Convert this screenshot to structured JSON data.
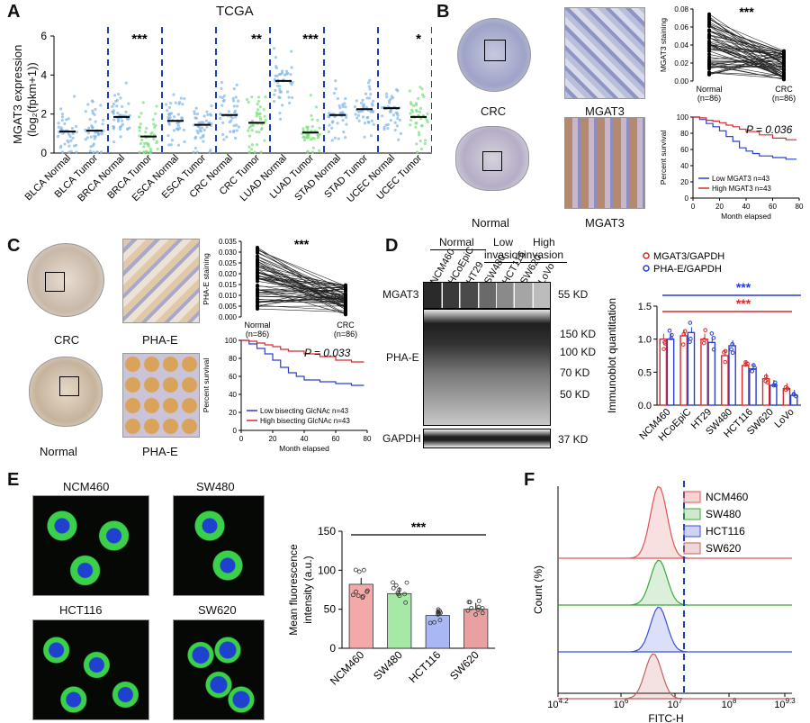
{
  "panels": {
    "A": "A",
    "B": "B",
    "C": "C",
    "D": "D",
    "E": "E",
    "F": "F"
  },
  "panelA": {
    "title": "TCGA",
    "ylabel_line1": "MGAT3 expression",
    "ylabel_line2": "(log₂(fpkm+1))",
    "significance": [
      "***",
      "**",
      "***",
      "*"
    ]
  },
  "chart_data": [
    {
      "type": "scatter",
      "panel": "A",
      "title": "TCGA",
      "ylabel": "MGAT3 expression (log2(fpkm+1))",
      "ylim": [
        0,
        6
      ],
      "yticks": [
        0,
        2,
        4,
        6
      ],
      "categories": [
        "BLCA Normal",
        "BLCA Tumor",
        "BRCA Normal",
        "BRCA Tumor",
        "ESCA Normal",
        "ESCA Tumor",
        "CRC Normal",
        "CRC Tumor",
        "LUAD Normal",
        "LUAD Tumor",
        "STAD Normal",
        "STAD Tumor",
        "UCEC Normal",
        "UCEC Tumor"
      ],
      "means": [
        1.1,
        1.15,
        1.85,
        0.85,
        1.65,
        1.45,
        1.95,
        1.55,
        3.7,
        1.05,
        1.95,
        2.25,
        2.3,
        1.85
      ],
      "colors": [
        "#7fb5e6",
        "#7fb5e6",
        "#7fb5e6",
        "#79e07a",
        "#7fb5e6",
        "#7fb5e6",
        "#7fb5e6",
        "#79e07a",
        "#7fb5e6",
        "#79e07a",
        "#7fb5e6",
        "#7fb5e6",
        "#7fb5e6",
        "#79e07a"
      ]
    },
    {
      "type": "line",
      "panel": "B-staining",
      "ylabel": "MGAT3 staining",
      "ylim": [
        0,
        0.08
      ],
      "yticks": [
        "0.00",
        "0.02",
        "0.04",
        "0.06",
        "0.08"
      ],
      "categories": [
        "Normal (n=86)",
        "CRC (n=86)"
      ],
      "significance": "***"
    },
    {
      "type": "line",
      "panel": "B-survival",
      "ylabel": "Percent survival",
      "xlabel": "Month elapsed",
      "xticks": [
        0,
        20,
        40,
        60,
        80
      ],
      "yticks": [
        0,
        20,
        40,
        60,
        80,
        100
      ],
      "p_value": "P = 0.036",
      "series": [
        {
          "name": "Low MGAT3 n=43",
          "color": "#2a3fd1",
          "x": [
            0,
            5,
            10,
            15,
            20,
            25,
            30,
            35,
            40,
            45,
            50,
            60,
            70,
            78
          ],
          "y": [
            100,
            97,
            92,
            88,
            83,
            76,
            70,
            62,
            58,
            55,
            52,
            50,
            48,
            48
          ]
        },
        {
          "name": "High MGAT3 n=43",
          "color": "#d62a2a",
          "x": [
            0,
            5,
            10,
            15,
            20,
            25,
            30,
            35,
            40,
            50,
            60,
            70,
            78
          ],
          "y": [
            100,
            99,
            96,
            95,
            93,
            90,
            88,
            85,
            82,
            78,
            74,
            72,
            72
          ]
        }
      ]
    },
    {
      "type": "line",
      "panel": "C-staining",
      "ylabel": "PHA-E staining",
      "ylim": [
        0,
        0.035
      ],
      "yticks": [
        "0.000",
        "0.005",
        "0.010",
        "0.015",
        "0.020",
        "0.025",
        "0.030",
        "0.035"
      ],
      "categories": [
        "Normal (n=86)",
        "CRC (n=86)"
      ],
      "significance": "***"
    },
    {
      "type": "line",
      "panel": "C-survival",
      "ylabel": "Percent survival",
      "xlabel": "Month elapsed",
      "xticks": [
        0,
        20,
        40,
        60,
        80
      ],
      "yticks": [
        0,
        20,
        40,
        60,
        80,
        100
      ],
      "p_value": "P = 0.033",
      "series": [
        {
          "name": "Low bisecting GlcNAc n=43",
          "color": "#2a3fd1",
          "x": [
            0,
            5,
            10,
            15,
            20,
            25,
            30,
            35,
            40,
            50,
            60,
            70,
            78
          ],
          "y": [
            100,
            96,
            91,
            85,
            78,
            70,
            64,
            60,
            56,
            54,
            52,
            50,
            50
          ]
        },
        {
          "name": "High bisecting GlcNAc n=43",
          "color": "#d62a2a",
          "x": [
            0,
            5,
            10,
            15,
            20,
            25,
            30,
            40,
            50,
            60,
            70,
            78
          ],
          "y": [
            100,
            99,
            97,
            95,
            93,
            90,
            88,
            85,
            82,
            78,
            76,
            76
          ]
        }
      ]
    },
    {
      "type": "bar",
      "panel": "D",
      "ylabel": "Immunoblot quantitation",
      "ylim": [
        0,
        1.5
      ],
      "yticks": [
        "0.0",
        "0.5",
        "1.0",
        "1.5"
      ],
      "categories": [
        "NCM460",
        "HCoEpiC",
        "HT29",
        "SW480",
        "HCT116",
        "SW620",
        "LoVo"
      ],
      "series": [
        {
          "name": "MGAT3/GAPDH",
          "color": "#d62a2a",
          "values": [
            1.0,
            1.05,
            1.0,
            0.75,
            0.6,
            0.4,
            0.25
          ]
        },
        {
          "name": "PHA-E/GAPDH",
          "color": "#2a3fd1",
          "values": [
            1.0,
            1.1,
            0.95,
            0.9,
            0.55,
            0.3,
            0.15
          ]
        }
      ],
      "significance": [
        "***",
        "***"
      ]
    },
    {
      "type": "bar",
      "panel": "E",
      "ylabel": "Mean fluorescence intensity (a.u.)",
      "ylim": [
        0,
        150
      ],
      "yticks": [
        0,
        50,
        100,
        150
      ],
      "categories": [
        "NCM460",
        "SW480",
        "HCT116",
        "SW620"
      ],
      "values": [
        82,
        70,
        42,
        50
      ],
      "colors": [
        "#f4a9a9",
        "#a6e8a6",
        "#a9b7f4",
        "#e8a0a0"
      ],
      "significance": "***"
    },
    {
      "type": "area",
      "panel": "F",
      "ylabel": "Count  (%)",
      "xlabel": "FITC-H",
      "xticks": [
        "10^4.2",
        "10^6",
        "10^7",
        "10^8",
        "10^9.3"
      ],
      "series": [
        {
          "name": "NCM460",
          "color": "#e05555"
        },
        {
          "name": "SW480",
          "color": "#3aa83a"
        },
        {
          "name": "HCT116",
          "color": "#3a50d6"
        },
        {
          "name": "SW620",
          "color": "#c06060"
        }
      ]
    }
  ],
  "panelB": {
    "img_label_top": "CRC",
    "img_label_top_right": "MGAT3",
    "img_label_bottom": "Normal",
    "img_label_bottom_right": "MGAT3"
  },
  "panelC": {
    "img_label_top": "CRC",
    "img_label_top_right": "PHA-E",
    "img_label_bottom": "Normal",
    "img_label_bottom_right": "PHA-E"
  },
  "panelD": {
    "group_normal": "Normal",
    "group_low": "Low",
    "group_low2": "invasion",
    "group_high": "High",
    "group_high2": "invasion",
    "lanes": [
      "NCM460",
      "HCoEpiC",
      "HT29",
      "SW480",
      "HCT116",
      "SW620",
      "LoVo"
    ],
    "row_mgat3": "MGAT3",
    "row_phae": "PHA-E",
    "row_gapdh": "GAPDH",
    "kd_55": "55 KD",
    "kd_150": "150 KD",
    "kd_100": "100 KD",
    "kd_70": "70 KD",
    "kd_50": "50 KD",
    "kd_37": "37 KD"
  },
  "panelE": {
    "cells": [
      "NCM460",
      "SW480",
      "HCT116",
      "SW620"
    ]
  }
}
